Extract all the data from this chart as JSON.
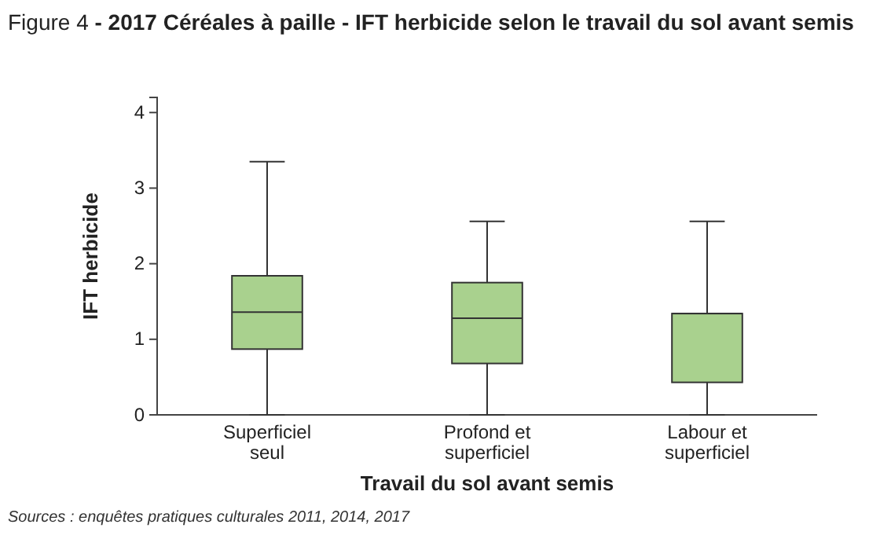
{
  "chart_data": {
    "type": "box",
    "title": "Figure 4 - 2017 Céréales à paille - IFT herbicide selon le travail du sol avant semis",
    "xlabel": "Travail du sol avant semis",
    "ylabel": "IFT herbicide",
    "categories": [
      "Superficiel seul",
      "Profond et superficiel",
      "Labour et superficiel"
    ],
    "boxes": [
      {
        "low": 0,
        "q1": 0.87,
        "median": 1.36,
        "q3": 1.84,
        "high": 3.35
      },
      {
        "low": 0,
        "q1": 0.68,
        "median": 1.28,
        "q3": 1.75,
        "high": 2.56
      },
      {
        "low": 0,
        "q1": 0.43,
        "median": 1.34,
        "q3": 1.34,
        "high": 2.56
      }
    ],
    "color": "#a9d18e",
    "ylim": [
      0,
      4.2
    ],
    "yticks": [
      0,
      1,
      2,
      3,
      4
    ],
    "grid": false,
    "annotations": [
      "Sources : enquêtes pratiques culturales 2011, 2014, 2017"
    ]
  }
}
